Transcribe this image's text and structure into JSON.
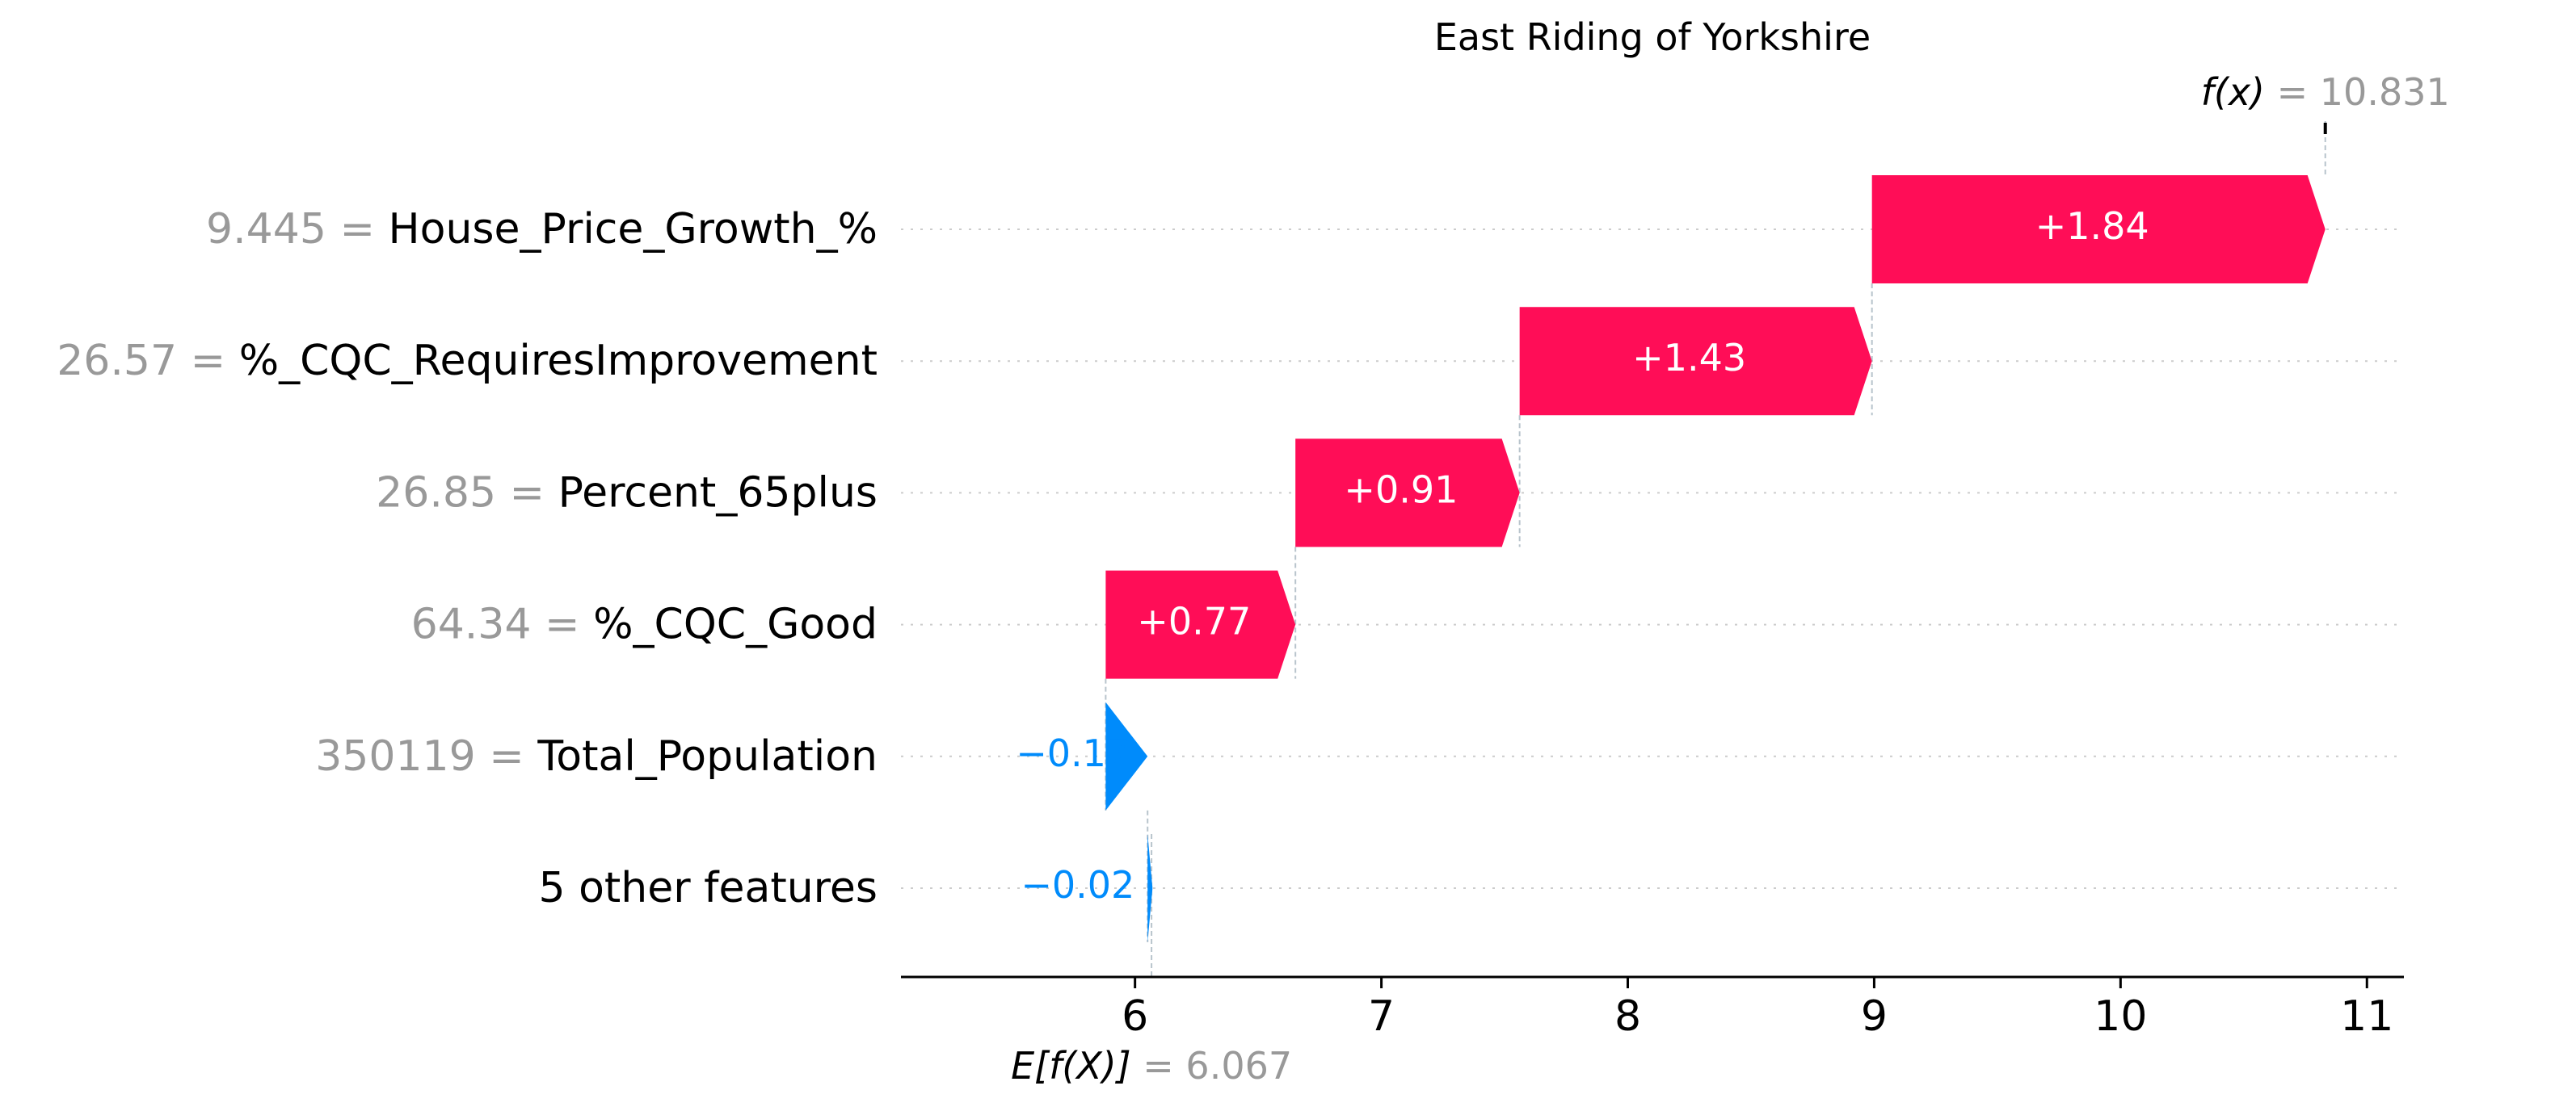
{
  "chart_data": {
    "type": "waterfall",
    "title": "East Riding of Yorkshire",
    "xlim": [
      5.05,
      11.15
    ],
    "xticks": [
      "6",
      "7",
      "8",
      "9",
      "10",
      "11"
    ],
    "base_value": 6.067,
    "base_label_prefix": "E[f(X)]",
    "base_value_text": "= 6.067",
    "output_value": 10.831,
    "output_label_prefix": "f(x)",
    "output_value_text": "= 10.831",
    "features": [
      {
        "name": "House_Price_Growth_%",
        "value_text": "9.445 =",
        "contribution": 1.84,
        "label": "+1.84"
      },
      {
        "name": "%_CQC_RequiresImprovement",
        "value_text": "26.57 =",
        "contribution": 1.43,
        "label": "+1.43"
      },
      {
        "name": "Percent_65plus",
        "value_text": "26.85 =",
        "contribution": 0.91,
        "label": "+0.91"
      },
      {
        "name": "%_CQC_Good",
        "value_text": "64.34 =",
        "contribution": 0.77,
        "label": "+0.77"
      },
      {
        "name": "Total_Population",
        "value_text": "350119 =",
        "contribution": -0.17,
        "label": "−0.17"
      },
      {
        "name": "5 other features",
        "value_text": "",
        "contribution": -0.02,
        "label": "−0.02"
      }
    ],
    "colors": {
      "positive": "#ff0d57",
      "negative": "#008bfb",
      "value_text": "#999999",
      "axis": "#000000",
      "grid": "#cccccc"
    }
  }
}
